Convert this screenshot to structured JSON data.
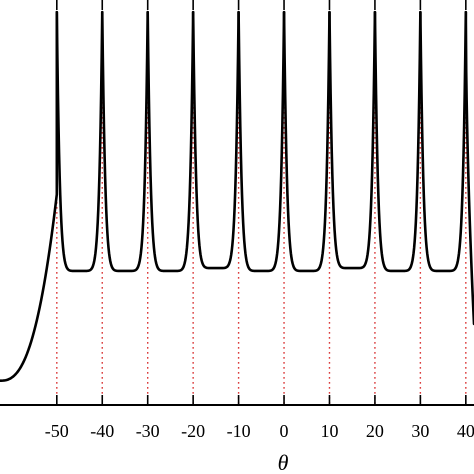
{
  "chart_data": {
    "type": "line",
    "title": "",
    "xlabel": "θ",
    "ylabel": "",
    "xlim": [
      -62.5,
      41.8
    ],
    "ylim": [
      0,
      1
    ],
    "grid": false,
    "legend": "none",
    "x_ticks": [
      -50,
      -40,
      -30,
      -20,
      -10,
      0,
      10,
      20,
      30,
      40
    ],
    "x_tick_labels": [
      "-50",
      "-40",
      "-30",
      "-20",
      "-10",
      "0",
      "10",
      "20",
      "30",
      "40"
    ],
    "series": [
      {
        "style": "solid",
        "color": "#000000",
        "singular_points": [
          -50,
          -40,
          -30,
          -20,
          -10,
          0,
          10,
          20,
          30,
          40
        ],
        "segment_minima": [
          0.331,
          0.331,
          0.331,
          0.338,
          0.331,
          0.331,
          0.338,
          0.331,
          0.331
        ],
        "left_branch": {
          "x_start": -62.5,
          "y_start": 0.06,
          "x_end": -50,
          "y_end": 0.52
        }
      }
    ],
    "reference_lines": {
      "style": "dotted",
      "color": "#d62020",
      "x": [
        -50,
        -40,
        -30,
        -20,
        -10,
        0,
        10,
        20,
        30,
        40
      ]
    }
  }
}
